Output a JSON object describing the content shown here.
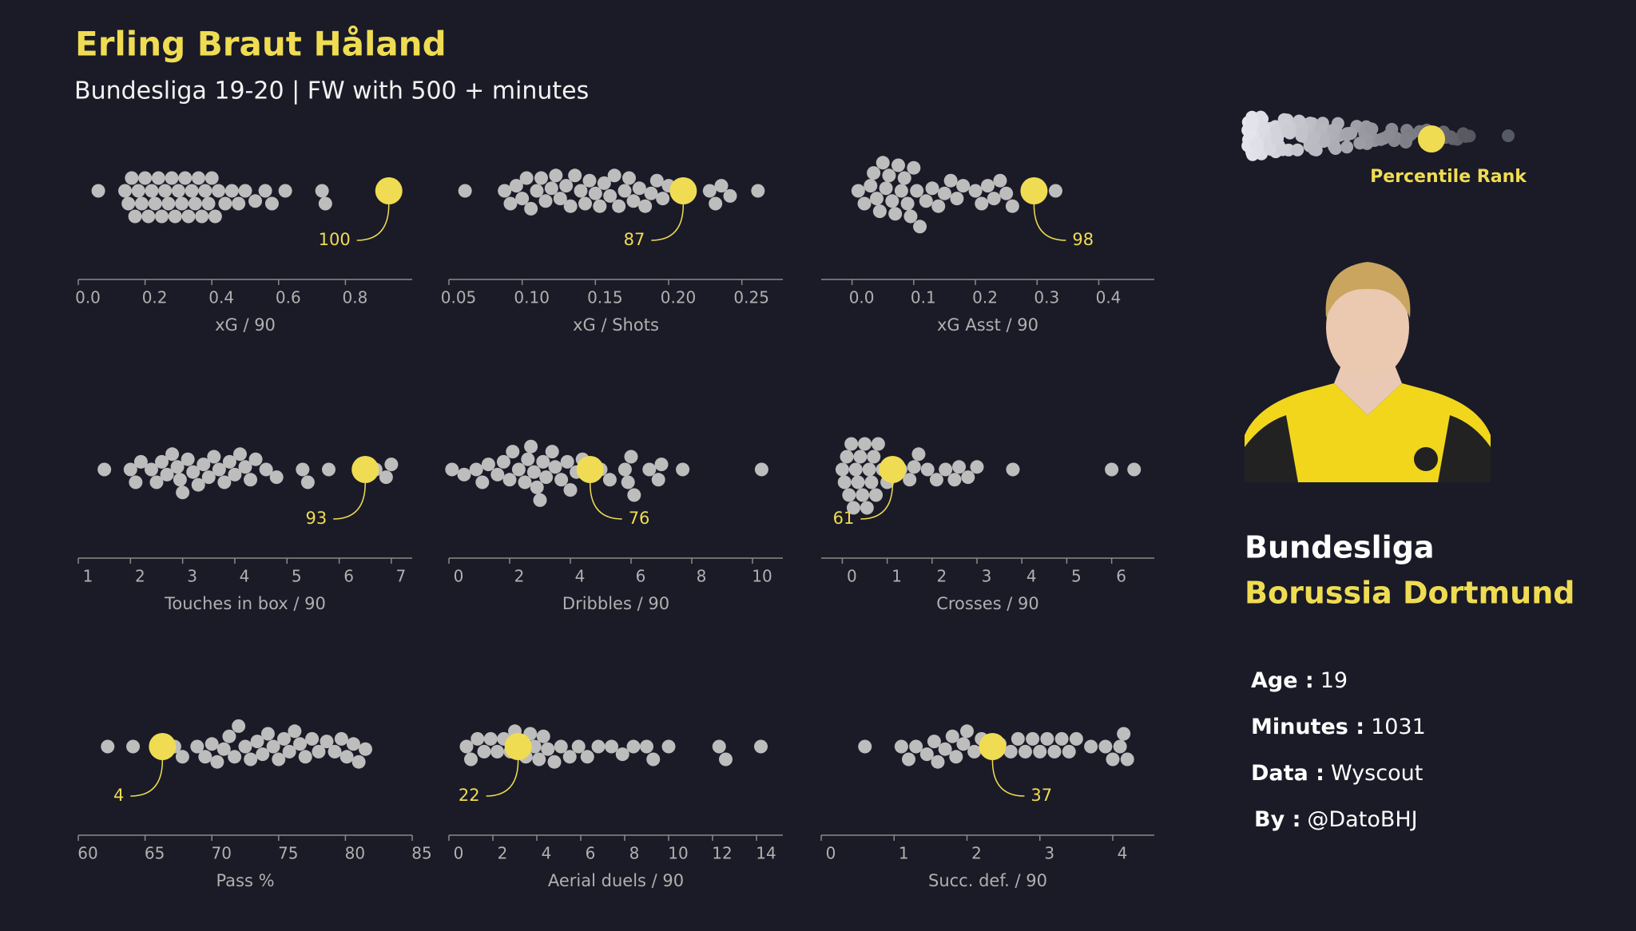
{
  "title": "Erling Braut Håland",
  "subtitle": "Bundesliga 19-20 | FW with 500 + minutes",
  "legend_label": "Percentile Rank",
  "league": "Bundesliga",
  "team": "Borussia Dortmund",
  "info": [
    {
      "label": "Age :",
      "value": 19
    },
    {
      "label": "Minutes :",
      "value": 1031
    },
    {
      "label": "Data :",
      "value": "Wyscout"
    },
    {
      "label": "By :",
      "value": "@DatoBHJ"
    }
  ],
  "chart_data": [
    {
      "type": "swarm",
      "xlabel": "xG / 90",
      "xlim": [
        0,
        1.0
      ],
      "xticks": [
        {
          "value": 0,
          "label": "0.0"
        },
        0.2,
        0.4,
        0.6,
        0.8
      ],
      "color": "#bdbdbd",
      "player_color": "#f0dc52",
      "player_value": 0.93,
      "percentile": 100,
      "values": [
        0.06,
        0.14,
        0.15,
        0.16,
        0.17,
        0.18,
        0.19,
        0.2,
        0.21,
        0.22,
        0.23,
        0.24,
        0.25,
        0.26,
        0.27,
        0.28,
        0.29,
        0.3,
        0.31,
        0.32,
        0.33,
        0.34,
        0.35,
        0.36,
        0.37,
        0.38,
        0.39,
        0.4,
        0.41,
        0.42,
        0.44,
        0.46,
        0.48,
        0.5,
        0.53,
        0.56,
        0.58,
        0.62,
        0.73,
        0.74
      ]
    },
    {
      "type": "swarm",
      "xlabel": "xG / Shots",
      "xlim": [
        0.05,
        0.278
      ],
      "xticks": [
        0.05,
        {
          "value": 0.1,
          "label": "0.10"
        },
        0.15,
        {
          "value": 0.2,
          "label": "0.20"
        },
        0.25
      ],
      "color": "#bdbdbd",
      "player_color": "#f0dc52",
      "player_value": 0.21,
      "percentile": 87,
      "values": [
        0.061,
        0.088,
        0.092,
        0.096,
        0.1,
        0.103,
        0.106,
        0.11,
        0.113,
        0.116,
        0.12,
        0.123,
        0.126,
        0.13,
        0.133,
        0.136,
        0.14,
        0.143,
        0.146,
        0.15,
        0.153,
        0.156,
        0.16,
        0.163,
        0.166,
        0.17,
        0.173,
        0.176,
        0.18,
        0.184,
        0.188,
        0.192,
        0.196,
        0.2,
        0.228,
        0.232,
        0.236,
        0.242,
        0.261
      ]
    },
    {
      "type": "swarm",
      "xlabel": "xG Asst / 90",
      "xlim": [
        -0.05,
        0.49
      ],
      "xticks": [
        {
          "value": 0,
          "label": "0.0"
        },
        0.1,
        0.2,
        0.3,
        0.4
      ],
      "color": "#bdbdbd",
      "player_color": "#f0dc52",
      "player_value": 0.295,
      "percentile": 98,
      "values": [
        0.01,
        0.02,
        0.03,
        0.035,
        0.04,
        0.045,
        0.05,
        0.055,
        0.06,
        0.065,
        0.07,
        0.075,
        0.08,
        0.085,
        0.09,
        0.095,
        0.1,
        0.105,
        0.11,
        0.12,
        0.13,
        0.14,
        0.15,
        0.16,
        0.17,
        0.18,
        0.2,
        0.21,
        0.22,
        0.23,
        0.24,
        0.25,
        0.26,
        0.33
      ]
    },
    {
      "type": "swarm",
      "xlabel": "Touches in box / 90",
      "xlim": [
        1,
        7.4
      ],
      "xticks": [
        1,
        2,
        3,
        4,
        5,
        6,
        7
      ],
      "color": "#bdbdbd",
      "player_color": "#f0dc52",
      "player_value": 6.5,
      "percentile": 93,
      "values": [
        1.5,
        2.0,
        2.1,
        2.2,
        2.4,
        2.5,
        2.6,
        2.7,
        2.8,
        2.9,
        2.95,
        3.0,
        3.1,
        3.2,
        3.3,
        3.4,
        3.5,
        3.6,
        3.7,
        3.8,
        3.9,
        4.0,
        4.1,
        4.2,
        4.3,
        4.4,
        4.6,
        4.8,
        5.3,
        5.4,
        5.8,
        6.7,
        6.9,
        7.0
      ]
    },
    {
      "type": "swarm",
      "xlabel": "Dribbles / 90",
      "xlim": [
        0,
        11
      ],
      "xticks": [
        0,
        2,
        4,
        6,
        8,
        10
      ],
      "color": "#bdbdbd",
      "player_color": "#f0dc52",
      "player_value": 4.65,
      "percentile": 76,
      "values": [
        0.1,
        0.5,
        0.9,
        1.1,
        1.3,
        1.6,
        1.8,
        2.0,
        2.1,
        2.3,
        2.5,
        2.6,
        2.7,
        2.8,
        2.9,
        3.0,
        3.1,
        3.2,
        3.4,
        3.5,
        3.7,
        3.9,
        4.0,
        4.2,
        4.4,
        5.0,
        5.3,
        5.8,
        5.9,
        6.0,
        6.1,
        6.6,
        6.9,
        7.0,
        7.7,
        10.3
      ]
    },
    {
      "type": "swarm",
      "xlabel": "Crosses / 90",
      "xlim": [
        -0.47,
        6.95
      ],
      "xticks": [
        0,
        1,
        2,
        3,
        4,
        5,
        6
      ],
      "color": "#bdbdbd",
      "player_color": "#f0dc52",
      "player_value": 1.12,
      "percentile": 61,
      "values": [
        0.0,
        0.05,
        0.1,
        0.15,
        0.2,
        0.25,
        0.3,
        0.35,
        0.4,
        0.45,
        0.5,
        0.55,
        0.6,
        0.65,
        0.7,
        0.75,
        0.8,
        0.9,
        1.0,
        1.3,
        1.5,
        1.6,
        1.7,
        1.9,
        2.1,
        2.3,
        2.5,
        2.6,
        2.8,
        3.0,
        3.8,
        6.0,
        6.5
      ]
    },
    {
      "type": "swarm",
      "xlabel": "Pass %",
      "xlim": [
        60,
        85
      ],
      "xticks": [
        60,
        65,
        70,
        75,
        80,
        85
      ],
      "color": "#bdbdbd",
      "player_color": "#f0dc52",
      "player_value": 66.3,
      "percentile": 4,
      "values": [
        62.2,
        64.1,
        67.2,
        67.8,
        68.9,
        69.5,
        70.0,
        70.4,
        70.9,
        71.3,
        71.7,
        72.0,
        72.5,
        72.9,
        73.4,
        73.8,
        74.2,
        74.6,
        75.0,
        75.4,
        75.8,
        76.2,
        76.6,
        77.0,
        77.5,
        78.0,
        78.6,
        79.2,
        79.7,
        80.1,
        80.6,
        81.0,
        81.5
      ]
    },
    {
      "type": "swarm",
      "xlabel": "Aerial duels / 90",
      "xlim": [
        0,
        15.2
      ],
      "xticks": [
        0,
        2,
        4,
        6,
        8,
        10,
        12,
        14
      ],
      "color": "#bdbdbd",
      "player_color": "#f0dc52",
      "player_value": 3.15,
      "percentile": 22,
      "values": [
        0.8,
        1.0,
        1.3,
        1.6,
        1.9,
        2.2,
        2.5,
        2.8,
        3.0,
        3.3,
        3.5,
        3.7,
        3.9,
        4.1,
        4.3,
        4.5,
        4.8,
        5.1,
        5.5,
        5.9,
        6.3,
        6.8,
        7.4,
        7.9,
        8.4,
        9.0,
        9.3,
        10.0,
        12.3,
        12.6,
        14.2
      ]
    },
    {
      "type": "swarm",
      "xlabel": "Succ. def. / 90",
      "xlim": [
        0,
        4.57
      ],
      "xticks": [
        0,
        1,
        2,
        3,
        4
      ],
      "color": "#bdbdbd",
      "player_color": "#f0dc52",
      "player_value": 2.35,
      "percentile": 37,
      "values": [
        0.6,
        1.1,
        1.2,
        1.3,
        1.45,
        1.55,
        1.6,
        1.7,
        1.8,
        1.85,
        1.95,
        2.0,
        2.1,
        2.2,
        2.3,
        2.45,
        2.6,
        2.7,
        2.8,
        2.9,
        3.0,
        3.1,
        3.2,
        3.3,
        3.4,
        3.5,
        3.7,
        3.9,
        4.0,
        4.1,
        4.15,
        4.2
      ]
    }
  ]
}
